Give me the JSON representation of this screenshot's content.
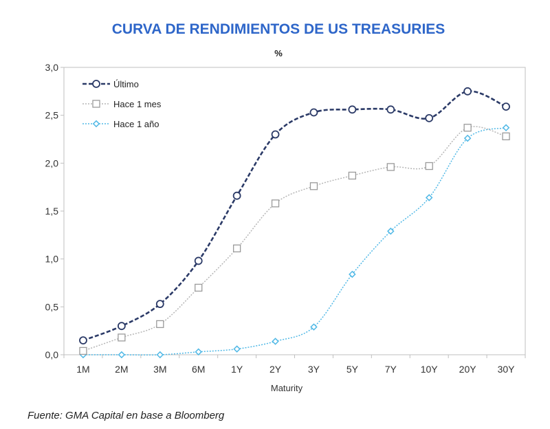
{
  "chart_data": {
    "type": "line",
    "title": "CURVA DE RENDIMIENTOS DE US TREASURIES",
    "subtitle": "%",
    "xlabel": "Maturity",
    "ylabel": "",
    "categories": [
      "1M",
      "2M",
      "3M",
      "6M",
      "1Y",
      "2Y",
      "3Y",
      "5Y",
      "7Y",
      "10Y",
      "20Y",
      "30Y"
    ],
    "ylim": [
      0,
      3.0
    ],
    "yticks": [
      "0,0",
      "0,5",
      "1,0",
      "1,5",
      "2,0",
      "2,5",
      "3,0"
    ],
    "ytick_values": [
      0,
      0.5,
      1.0,
      1.5,
      2.0,
      2.5,
      3.0
    ],
    "legend_position": "top-left",
    "series": [
      {
        "name": "Último",
        "color": "#2b3a67",
        "style": "dashed",
        "marker": "circle",
        "values": [
          0.15,
          0.3,
          0.53,
          0.98,
          1.66,
          2.3,
          2.53,
          2.56,
          2.56,
          2.47,
          2.75,
          2.59
        ]
      },
      {
        "name": "Hace 1 mes",
        "color": "#b5b5b5",
        "style": "dotted",
        "marker": "square",
        "values": [
          0.04,
          0.18,
          0.32,
          0.7,
          1.11,
          1.58,
          1.76,
          1.87,
          1.96,
          1.97,
          2.37,
          2.28
        ]
      },
      {
        "name": "Hace 1 año",
        "color": "#4fb8e6",
        "style": "dotted",
        "marker": "diamond",
        "values": [
          0.0,
          0.0,
          0.0,
          0.03,
          0.06,
          0.14,
          0.29,
          0.84,
          1.29,
          1.64,
          2.26,
          2.37
        ]
      }
    ]
  },
  "source": "Fuente: GMA Capital en base a Bloomberg"
}
